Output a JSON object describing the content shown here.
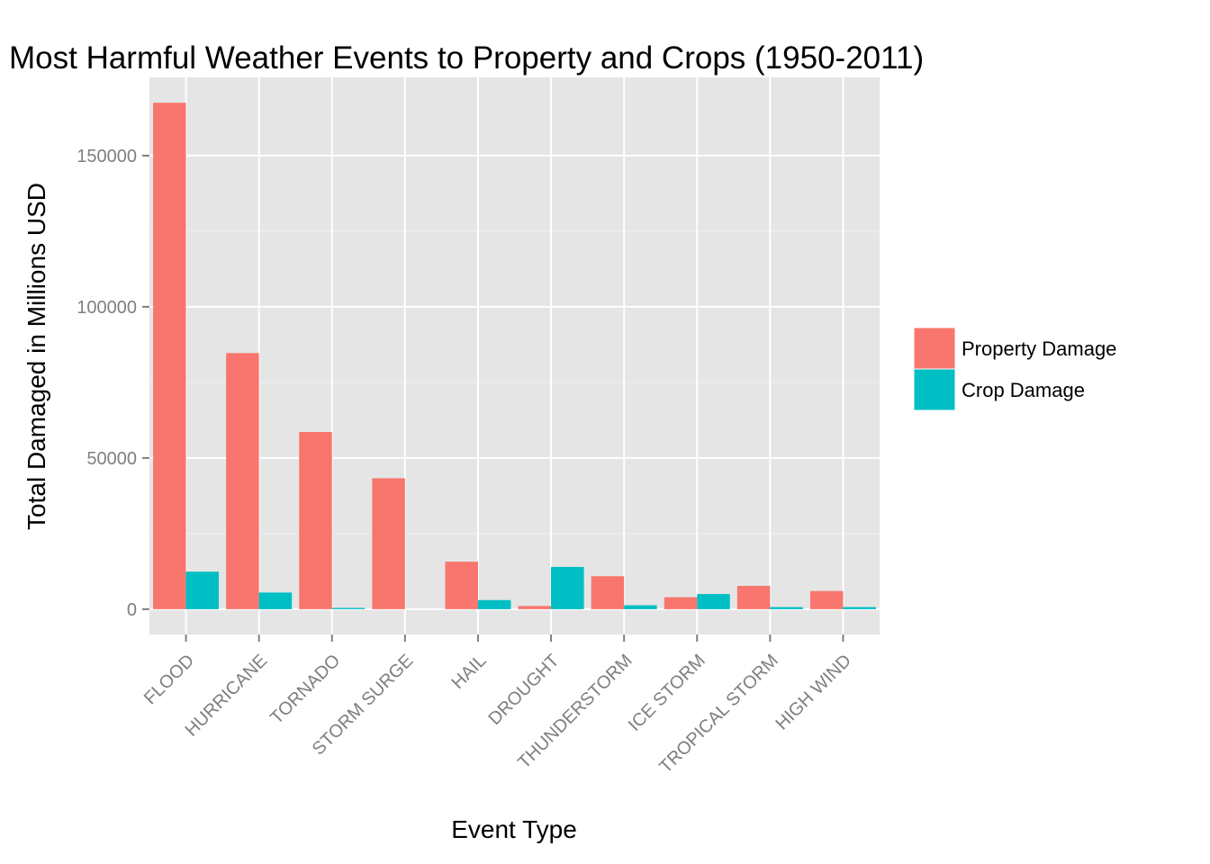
{
  "chart_data": {
    "type": "bar",
    "title": "Most Harmful Weather Events to Property and Crops (1950-2011)",
    "xlabel": "Event Type",
    "ylabel": "Total Damaged in Millions USD",
    "categories": [
      "FLOOD",
      "HURRICANE",
      "TORNADO",
      "STORM SURGE",
      "HAIL",
      "DROUGHT",
      "THUNDERSTORM",
      "ICE STORM",
      "TROPICAL STORM",
      "HIGH WIND"
    ],
    "series": [
      {
        "name": "Property Damage",
        "color": "#f8766d",
        "values": [
          167500,
          84700,
          58600,
          43300,
          15700,
          1050,
          10900,
          3950,
          7700,
          6000
        ]
      },
      {
        "name": "Crop Damage",
        "color": "#00bfc4",
        "values": [
          12400,
          5500,
          415,
          0.005,
          3000,
          13970,
          1300,
          5000,
          680,
          690
        ]
      }
    ],
    "y_ticks": [
      0,
      50000,
      100000,
      150000
    ],
    "ylim": [
      -8375,
      175875
    ],
    "grid": true,
    "legend_position": "right",
    "panel_background": "#e5e5e5",
    "grid_color": "#ffffff"
  }
}
